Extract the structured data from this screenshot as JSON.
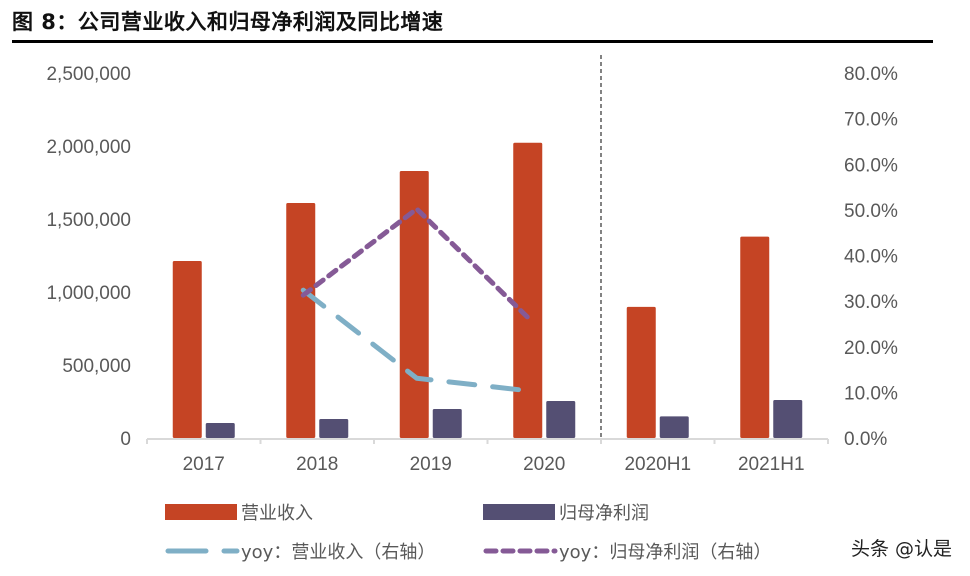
{
  "title": "图 8：公司营业收入和归母净利润及同比增速",
  "watermark": "头条 @认是",
  "chart_data": {
    "type": "bar",
    "title": "图 8：公司营业收入和归母净利润及同比增速",
    "categories": [
      "2017",
      "2018",
      "2019",
      "2020",
      "2020H1",
      "2021H1"
    ],
    "series": [
      {
        "name": "营业收入",
        "type": "bar",
        "axis": "left",
        "color": "#C54424",
        "values": [
          1212000,
          1610000,
          1829000,
          2022000,
          898000,
          1379000
        ]
      },
      {
        "name": "归母净利润",
        "type": "bar",
        "axis": "left",
        "color": "#544F73",
        "values": [
          103000,
          130000,
          199000,
          253000,
          148000,
          260000
        ]
      },
      {
        "name": "yoy：营业收入（右轴）",
        "type": "line",
        "axis": "right",
        "color": "#7FAFC6",
        "dash": "long",
        "values": [
          null,
          0.324,
          0.131,
          0.103,
          null,
          null
        ]
      },
      {
        "name": "yoy：归母净利润（右轴）",
        "type": "line",
        "axis": "right",
        "color": "#855A96",
        "dash": "short",
        "values": [
          null,
          0.313,
          0.502,
          0.259,
          null,
          null
        ]
      }
    ],
    "left_axis": {
      "min": 0,
      "max": 2500000,
      "ticks": [
        0,
        500000,
        1000000,
        1500000,
        2000000,
        2500000
      ],
      "tick_labels": [
        "0",
        "500,000",
        "1,000,000",
        "1,500,000",
        "2,000,000",
        "2,500,000"
      ]
    },
    "right_axis": {
      "min": 0,
      "max": 0.8,
      "ticks": [
        0,
        0.1,
        0.2,
        0.3,
        0.4,
        0.5,
        0.6,
        0.7,
        0.8
      ],
      "tick_labels": [
        "0.0%",
        "10.0%",
        "20.0%",
        "30.0%",
        "40.0%",
        "50.0%",
        "60.0%",
        "70.0%",
        "80.0%"
      ]
    },
    "xlabel": "",
    "ylabel": "",
    "grid": false,
    "divider_after_category": "2020",
    "legend_position": "bottom",
    "legend": [
      {
        "label": "营业收入",
        "kind": "bar",
        "color": "#C54424"
      },
      {
        "label": "归母净利润",
        "kind": "bar",
        "color": "#544F73"
      },
      {
        "label": "yoy：营业收入（右轴）",
        "kind": "line-long-dash",
        "color": "#7FAFC6"
      },
      {
        "label": "yoy：归母净利润（右轴）",
        "kind": "line-short-dash",
        "color": "#855A96"
      }
    ]
  }
}
